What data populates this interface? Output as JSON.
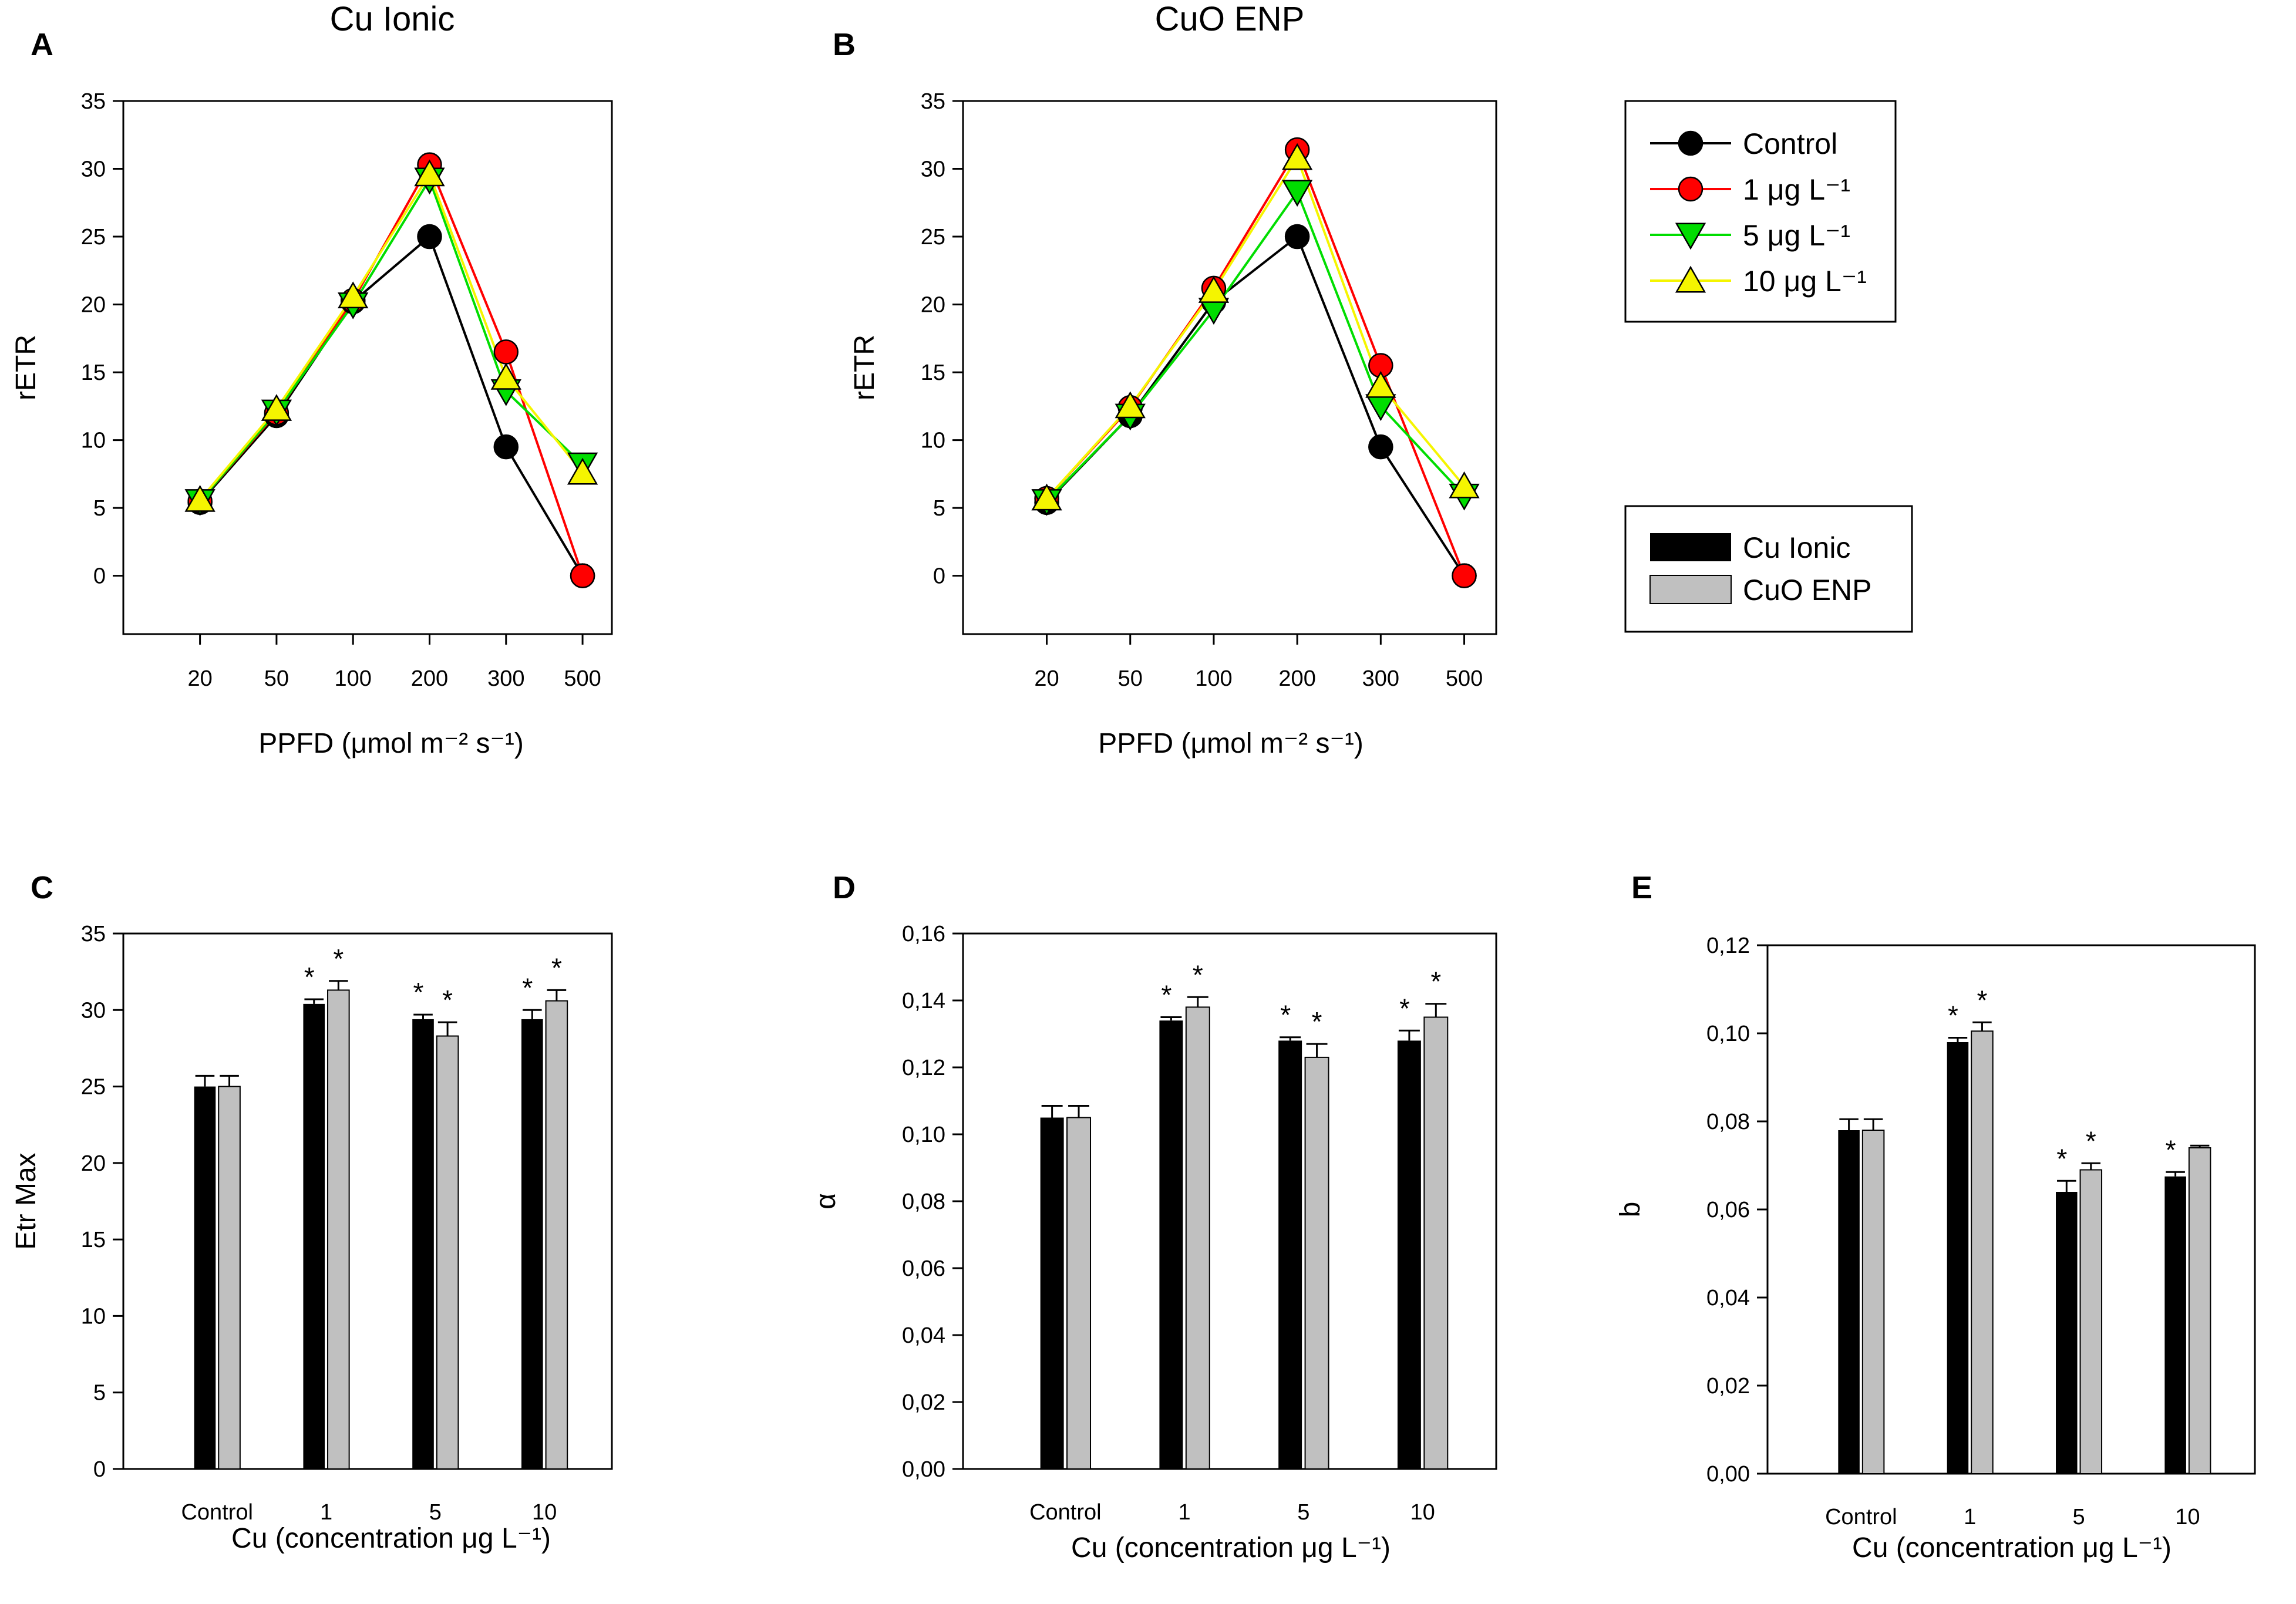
{
  "legend_lines": [
    {
      "name": "Control",
      "color": "#000000",
      "marker": "circle"
    },
    {
      "name": "1 μg L⁻¹",
      "color": "#ff0000",
      "marker": "circle"
    },
    {
      "name": "5 μg L⁻¹",
      "color": "#00dd00",
      "marker": "triangle-down"
    },
    {
      "name": "10 μg L⁻¹",
      "color": "#f5f500",
      "marker": "triangle-up"
    }
  ],
  "legend_bars": [
    {
      "name": "Cu Ionic",
      "color": "#000000"
    },
    {
      "name": "CuO ENP",
      "color": "#c0c0c0"
    }
  ],
  "chart_data": [
    {
      "id": "A",
      "type": "line",
      "letter": "A",
      "title": "Cu Ionic",
      "xlabel": "PPFD (μmol m⁻² s⁻¹)",
      "ylabel": "rETR",
      "categories": [
        "20",
        "50",
        "100",
        "200",
        "300",
        "500"
      ],
      "ylim": [
        -4.3,
        35
      ],
      "yticks": [
        0,
        5,
        10,
        15,
        20,
        25,
        30,
        35
      ],
      "series": [
        {
          "name": "Control",
          "color": "#000000",
          "marker": "circle",
          "values": [
            5.4,
            11.8,
            20.2,
            25.0,
            9.5,
            0.0
          ]
        },
        {
          "name": "1 μg L⁻¹",
          "color": "#ff0000",
          "marker": "circle",
          "values": [
            5.5,
            12.0,
            20.3,
            30.3,
            16.5,
            0.0
          ]
        },
        {
          "name": "5 μg L⁻¹",
          "color": "#00dd00",
          "marker": "triangle-down",
          "values": [
            5.5,
            12.1,
            20.0,
            29.2,
            13.6,
            8.2
          ]
        },
        {
          "name": "10 μg L⁻¹",
          "color": "#f5f500",
          "marker": "triangle-up",
          "values": [
            5.6,
            12.3,
            20.6,
            29.6,
            14.6,
            7.6
          ]
        }
      ]
    },
    {
      "id": "B",
      "type": "line",
      "letter": "B",
      "title": "CuO ENP",
      "xlabel": "PPFD (μmol m⁻² s⁻¹)",
      "ylabel": "rETR",
      "categories": [
        "20",
        "50",
        "100",
        "200",
        "300",
        "500"
      ],
      "ylim": [
        -4.3,
        35
      ],
      "yticks": [
        0,
        5,
        10,
        15,
        20,
        25,
        30,
        35
      ],
      "series": [
        {
          "name": "Control",
          "color": "#000000",
          "marker": "circle",
          "values": [
            5.4,
            11.8,
            20.2,
            25.0,
            9.5,
            0.0
          ]
        },
        {
          "name": "1 μg L⁻¹",
          "color": "#ff0000",
          "marker": "circle",
          "values": [
            5.7,
            12.4,
            21.2,
            31.4,
            15.5,
            0.0
          ]
        },
        {
          "name": "5 μg L⁻¹",
          "color": "#00dd00",
          "marker": "triangle-down",
          "values": [
            5.5,
            11.8,
            19.6,
            28.3,
            12.5,
            5.9
          ]
        },
        {
          "name": "10 μg L⁻¹",
          "color": "#f5f500",
          "marker": "triangle-up",
          "values": [
            5.7,
            12.5,
            21.0,
            30.8,
            14.0,
            6.6
          ]
        }
      ]
    },
    {
      "id": "C",
      "type": "bar",
      "letter": "C",
      "xlabel": "Cu (concentration μg L⁻¹)",
      "ylabel": "Etr Max",
      "categories": [
        "Control",
        "1",
        "5",
        "10"
      ],
      "ylim": [
        0,
        35
      ],
      "yticks": [
        0,
        5,
        10,
        15,
        20,
        25,
        30,
        35
      ],
      "decimals": 0,
      "series": [
        {
          "name": "Cu Ionic",
          "color": "#000000",
          "values": [
            25.0,
            30.4,
            29.4,
            29.4
          ],
          "errors": [
            0.7,
            0.3,
            0.3,
            0.6
          ],
          "sig": [
            false,
            true,
            true,
            true
          ]
        },
        {
          "name": "CuO ENP",
          "color": "#c0c0c0",
          "values": [
            25.0,
            31.3,
            28.3,
            30.6
          ],
          "errors": [
            0.7,
            0.6,
            0.9,
            0.7
          ],
          "sig": [
            false,
            true,
            true,
            true
          ]
        }
      ]
    },
    {
      "id": "D",
      "type": "bar",
      "letter": "D",
      "xlabel": "Cu (concentration μg L⁻¹)",
      "ylabel": "α",
      "categories": [
        "Control",
        "1",
        "5",
        "10"
      ],
      "ylim": [
        0,
        0.16
      ],
      "yticks": [
        0,
        0.02,
        0.04,
        0.06,
        0.08,
        0.1,
        0.12,
        0.14,
        0.16
      ],
      "decimals": 2,
      "series": [
        {
          "name": "Cu Ionic",
          "color": "#000000",
          "values": [
            0.105,
            0.134,
            0.128,
            0.128
          ],
          "errors": [
            0.0035,
            0.001,
            0.001,
            0.003
          ],
          "sig": [
            false,
            true,
            true,
            true
          ]
        },
        {
          "name": "CuO ENP",
          "color": "#c0c0c0",
          "values": [
            0.105,
            0.138,
            0.123,
            0.135
          ],
          "errors": [
            0.0035,
            0.003,
            0.004,
            0.004
          ],
          "sig": [
            false,
            true,
            true,
            true
          ]
        }
      ]
    },
    {
      "id": "E",
      "type": "bar",
      "letter": "E",
      "xlabel": "Cu (concentration μg L⁻¹)",
      "ylabel": "b",
      "categories": [
        "Control",
        "1",
        "5",
        "10"
      ],
      "ylim": [
        0,
        0.12
      ],
      "yticks": [
        0,
        0.02,
        0.04,
        0.06,
        0.08,
        0.1,
        0.12
      ],
      "decimals": 2,
      "series": [
        {
          "name": "Cu Ionic",
          "color": "#000000",
          "values": [
            0.078,
            0.098,
            0.064,
            0.0675
          ],
          "errors": [
            0.0025,
            0.001,
            0.0025,
            0.001
          ],
          "sig": [
            false,
            true,
            true,
            true
          ]
        },
        {
          "name": "CuO ENP",
          "color": "#c0c0c0",
          "values": [
            0.078,
            0.1005,
            0.069,
            0.074
          ],
          "errors": [
            0.0025,
            0.002,
            0.0015,
            0.0005
          ],
          "sig": [
            false,
            true,
            true,
            false
          ]
        }
      ]
    }
  ]
}
